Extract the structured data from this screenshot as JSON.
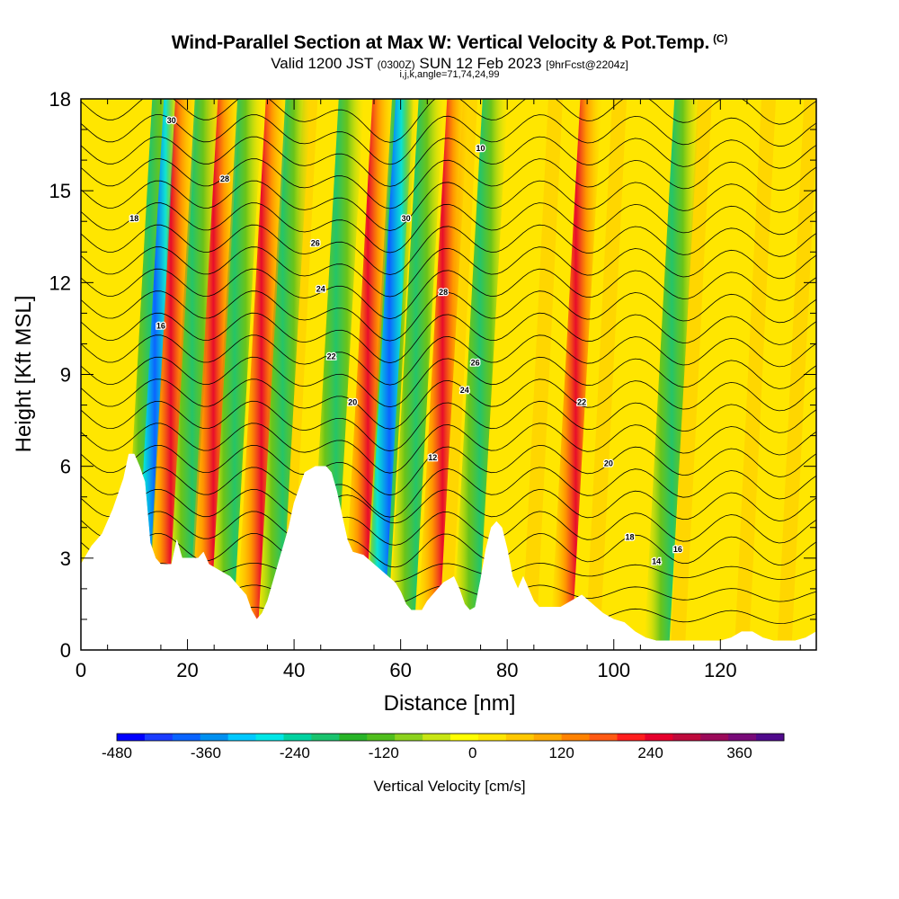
{
  "chart_data": {
    "type": "heatmap",
    "title": "Wind-Parallel Section at Max W: Vertical Velocity & Pot.Temp.",
    "title_mark": "(C)",
    "subtitle_main_a": "Valid 1200 JST",
    "subtitle_small_a": "(0300Z)",
    "subtitle_main_b": "SUN 12 Feb 2023",
    "subtitle_small_b": "[9hrFcst@2204z]",
    "subtitle2": "i,j,k,angle=71,74,24,99",
    "xlabel": "Distance [nm]",
    "ylabel": "Height [Kft MSL]",
    "xlim": [
      0,
      138
    ],
    "ylim": [
      0,
      18
    ],
    "x_ticks": [
      "0",
      "20",
      "40",
      "60",
      "80",
      "100",
      "120"
    ],
    "y_ticks": [
      "0",
      "3",
      "6",
      "9",
      "12",
      "15",
      "18"
    ],
    "colorbar": {
      "label": "Vertical Velocity [cm/s]",
      "range": [
        -480,
        420
      ],
      "ticks": [
        "-480",
        "-360",
        "-240",
        "-120",
        "0",
        "120",
        "240",
        "360"
      ],
      "colors": [
        "#0000ff",
        "#1a3cff",
        "#0a64ff",
        "#0090f0",
        "#00c8ff",
        "#00e6e6",
        "#00d2a0",
        "#19c36e",
        "#28b428",
        "#50be1e",
        "#8cd21e",
        "#c8e614",
        "#ffff00",
        "#ffe600",
        "#ffc800",
        "#ffaa00",
        "#ff8200",
        "#ff5a14",
        "#ff1e1e",
        "#e6002d",
        "#be0a3c",
        "#9b0a5a",
        "#780a78",
        "#500a8c"
      ]
    },
    "updraft_bands_nm": [
      14,
      22,
      31,
      51,
      65,
      90
    ],
    "downdraft_bands_nm": [
      10,
      18,
      26,
      35,
      45,
      55,
      60,
      72,
      108
    ],
    "theta_contour_labels": [
      "30",
      "28",
      "26",
      "24",
      "22",
      "20",
      "18",
      "16",
      "30",
      "28",
      "26",
      "24",
      "22",
      "20",
      "18",
      "16",
      "14",
      "12",
      "10"
    ],
    "terrain_kft": [
      [
        0,
        2.8
      ],
      [
        2,
        3.4
      ],
      [
        4,
        3.8
      ],
      [
        6,
        4.6
      ],
      [
        8,
        5.6
      ],
      [
        9,
        6.4
      ],
      [
        10,
        6.4
      ],
      [
        11,
        6.0
      ],
      [
        12,
        5.5
      ],
      [
        13,
        3.5
      ],
      [
        14,
        3.0
      ],
      [
        15,
        2.8
      ],
      [
        17,
        2.8
      ],
      [
        18,
        3.6
      ],
      [
        19,
        3.0
      ],
      [
        21,
        3.0
      ],
      [
        22,
        3.0
      ],
      [
        23,
        3.2
      ],
      [
        24,
        2.8
      ],
      [
        26,
        2.6
      ],
      [
        28,
        2.4
      ],
      [
        30,
        2.0
      ],
      [
        31,
        1.8
      ],
      [
        32,
        1.3
      ],
      [
        33,
        1.0
      ],
      [
        34,
        1.2
      ],
      [
        35,
        1.6
      ],
      [
        36,
        2.2
      ],
      [
        37,
        2.8
      ],
      [
        38,
        3.4
      ],
      [
        39,
        4.0
      ],
      [
        40,
        4.8
      ],
      [
        41,
        5.3
      ],
      [
        42,
        5.8
      ],
      [
        44,
        6.0
      ],
      [
        46,
        6.0
      ],
      [
        47,
        5.8
      ],
      [
        48,
        5.2
      ],
      [
        49,
        4.4
      ],
      [
        50,
        3.6
      ],
      [
        51,
        3.2
      ],
      [
        53,
        3.1
      ],
      [
        55,
        2.8
      ],
      [
        57,
        2.5
      ],
      [
        59,
        2.2
      ],
      [
        60,
        1.9
      ],
      [
        61,
        1.5
      ],
      [
        62,
        1.3
      ],
      [
        64,
        1.3
      ],
      [
        65,
        1.6
      ],
      [
        67,
        2.0
      ],
      [
        68,
        2.2
      ],
      [
        70,
        2.4
      ],
      [
        71,
        2.0
      ],
      [
        72,
        1.5
      ],
      [
        73,
        1.3
      ],
      [
        74,
        1.4
      ],
      [
        75,
        2.3
      ],
      [
        76,
        3.3
      ],
      [
        77,
        4.0
      ],
      [
        78,
        4.2
      ],
      [
        79,
        4.0
      ],
      [
        80,
        3.3
      ],
      [
        81,
        2.4
      ],
      [
        82,
        2.0
      ],
      [
        83,
        2.4
      ],
      [
        84,
        2.0
      ],
      [
        85,
        1.6
      ],
      [
        86,
        1.4
      ],
      [
        88,
        1.4
      ],
      [
        90,
        1.4
      ],
      [
        92,
        1.6
      ],
      [
        94,
        1.8
      ],
      [
        96,
        1.5
      ],
      [
        98,
        1.2
      ],
      [
        100,
        1.0
      ],
      [
        102,
        0.9
      ],
      [
        104,
        0.6
      ],
      [
        106,
        0.4
      ],
      [
        108,
        0.3
      ],
      [
        110,
        0.3
      ],
      [
        112,
        0.3
      ],
      [
        114,
        0.3
      ],
      [
        116,
        0.3
      ],
      [
        118,
        0.3
      ],
      [
        120,
        0.3
      ],
      [
        122,
        0.4
      ],
      [
        124,
        0.6
      ],
      [
        126,
        0.6
      ],
      [
        128,
        0.4
      ],
      [
        130,
        0.3
      ],
      [
        132,
        0.3
      ],
      [
        134,
        0.3
      ],
      [
        136,
        0.4
      ],
      [
        138,
        0.6
      ]
    ]
  }
}
